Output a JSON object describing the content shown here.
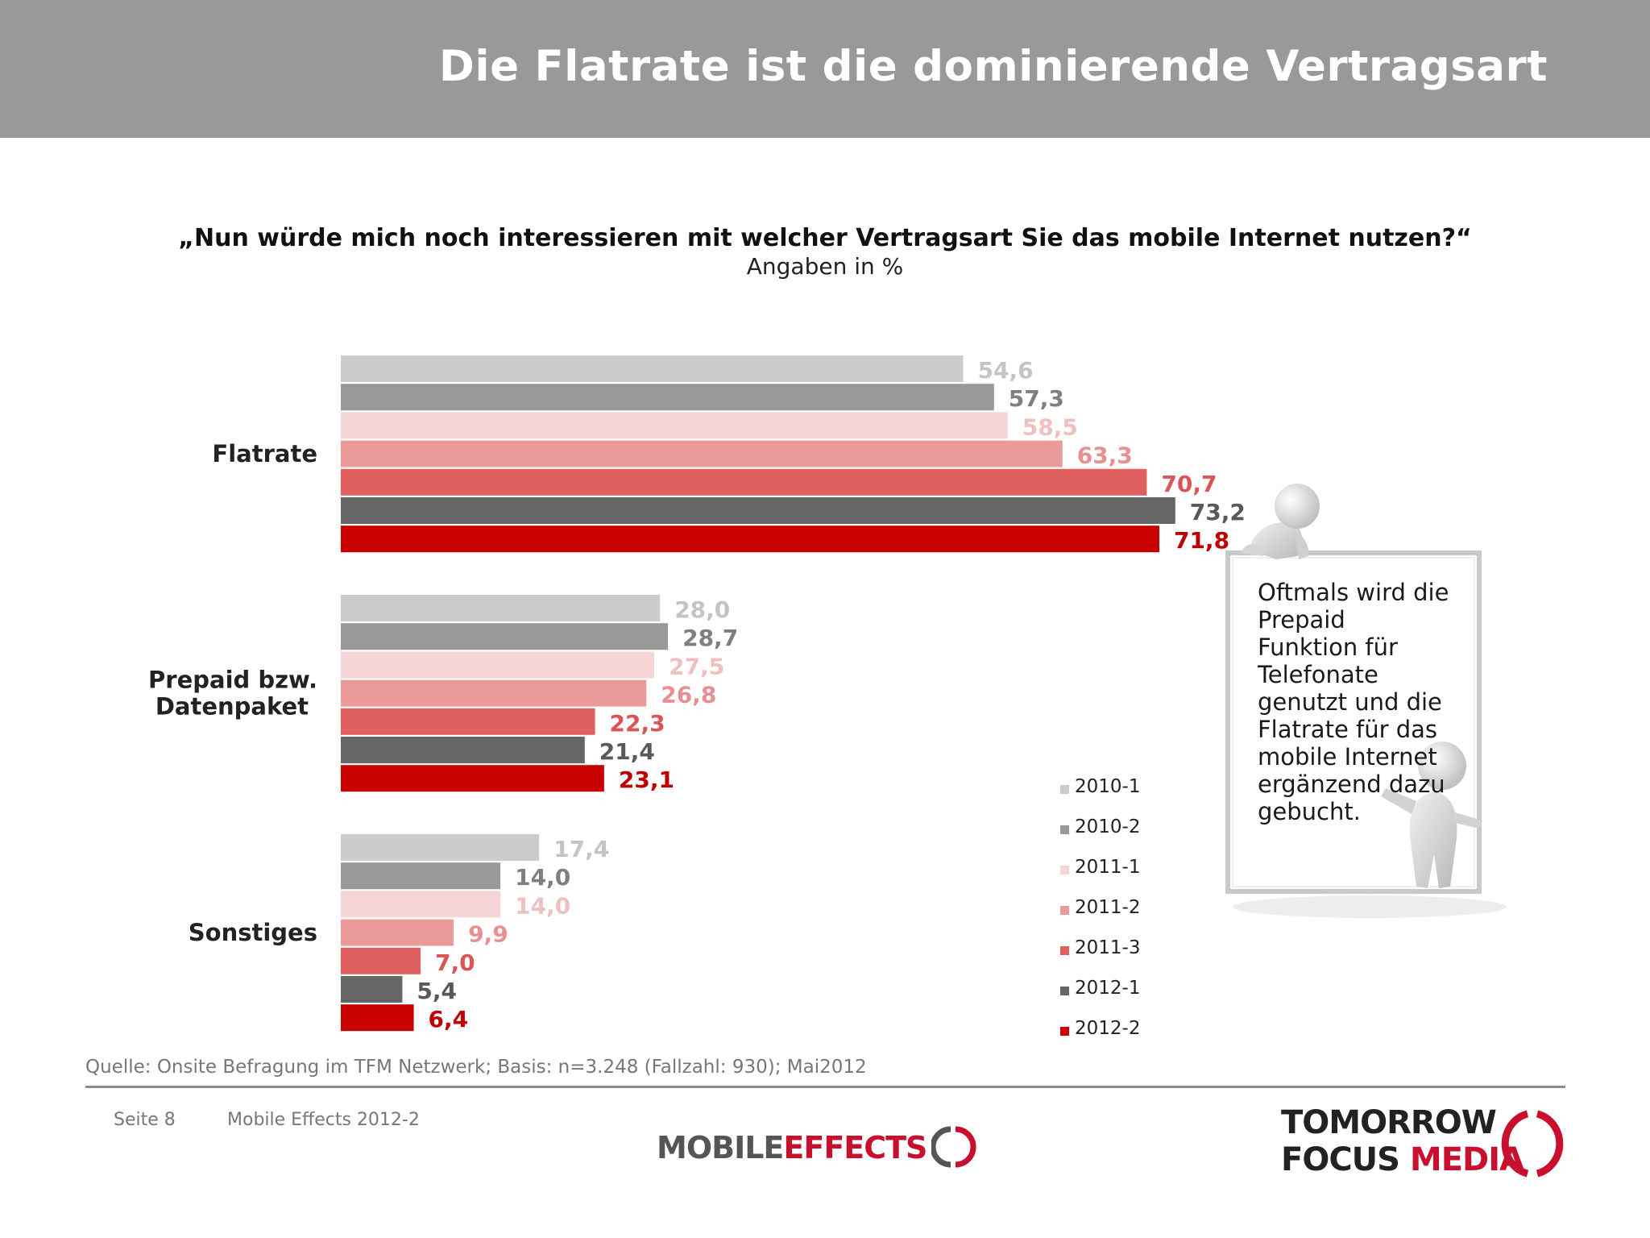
{
  "header": {
    "title": "Die Flatrate ist die dominierende Vertragsart"
  },
  "question": "„Nun würde mich noch interessieren mit welcher Vertragsart Sie das mobile Internet nutzen?“",
  "subtitle": "Angaben in %",
  "chart_data": {
    "type": "bar",
    "orientation": "horizontal",
    "categories": [
      "Flatrate",
      "Prepaid bzw. Datenpaket",
      "Sonstiges"
    ],
    "xlim": [
      0,
      100
    ],
    "grid": false,
    "legend_position": "right",
    "series": [
      {
        "name": "2010-1",
        "color": "#cccccc",
        "label_color": "#c4c4c4",
        "values": [
          "54,6",
          "28,0",
          "17,4"
        ]
      },
      {
        "name": "2010-2",
        "color": "#999999",
        "label_color": "#7f7f7f",
        "values": [
          "57,3",
          "28,7",
          "14,0"
        ]
      },
      {
        "name": "2011-1",
        "color": "#f5d5d5",
        "label_color": "#f0c0c0",
        "values": [
          "58,5",
          "27,5",
          "14,0"
        ]
      },
      {
        "name": "2011-2",
        "color": "#eb9a9a",
        "label_color": "#e8908f",
        "values": [
          "63,3",
          "26,8",
          "9,9"
        ]
      },
      {
        "name": "2011-3",
        "color": "#e06060",
        "label_color": "#dc5555",
        "values": [
          "70,7",
          "22,3",
          "7,0"
        ]
      },
      {
        "name": "2012-1",
        "color": "#666666",
        "label_color": "#595959",
        "values": [
          "73,2",
          "21,4",
          "5,4"
        ]
      },
      {
        "name": "2012-2",
        "color": "#c80000",
        "label_color": "#c00000",
        "values": [
          "71,8",
          "23,1",
          "6,4"
        ]
      }
    ]
  },
  "note": {
    "icon": "figures-holding-board",
    "text": "Oftmals wird die Prepaid Funktion für Telefonate genutzt und die Flatrate für das mobile Internet ergänzend dazu gebucht."
  },
  "footer": {
    "source": "Quelle: Onsite Befragung im TFM Netzwerk; Basis: n=3.248 (Fallzahl: 930); Mai2012",
    "page": "Seite 8",
    "report": "Mobile Effects 2012-2",
    "logo_mobile": "MOBILE",
    "logo_effects": "EFFECTS",
    "logo_tomorrow": "TOMORROW",
    "logo_focus": "FOCUS",
    "logo_media": "MEDIA"
  }
}
